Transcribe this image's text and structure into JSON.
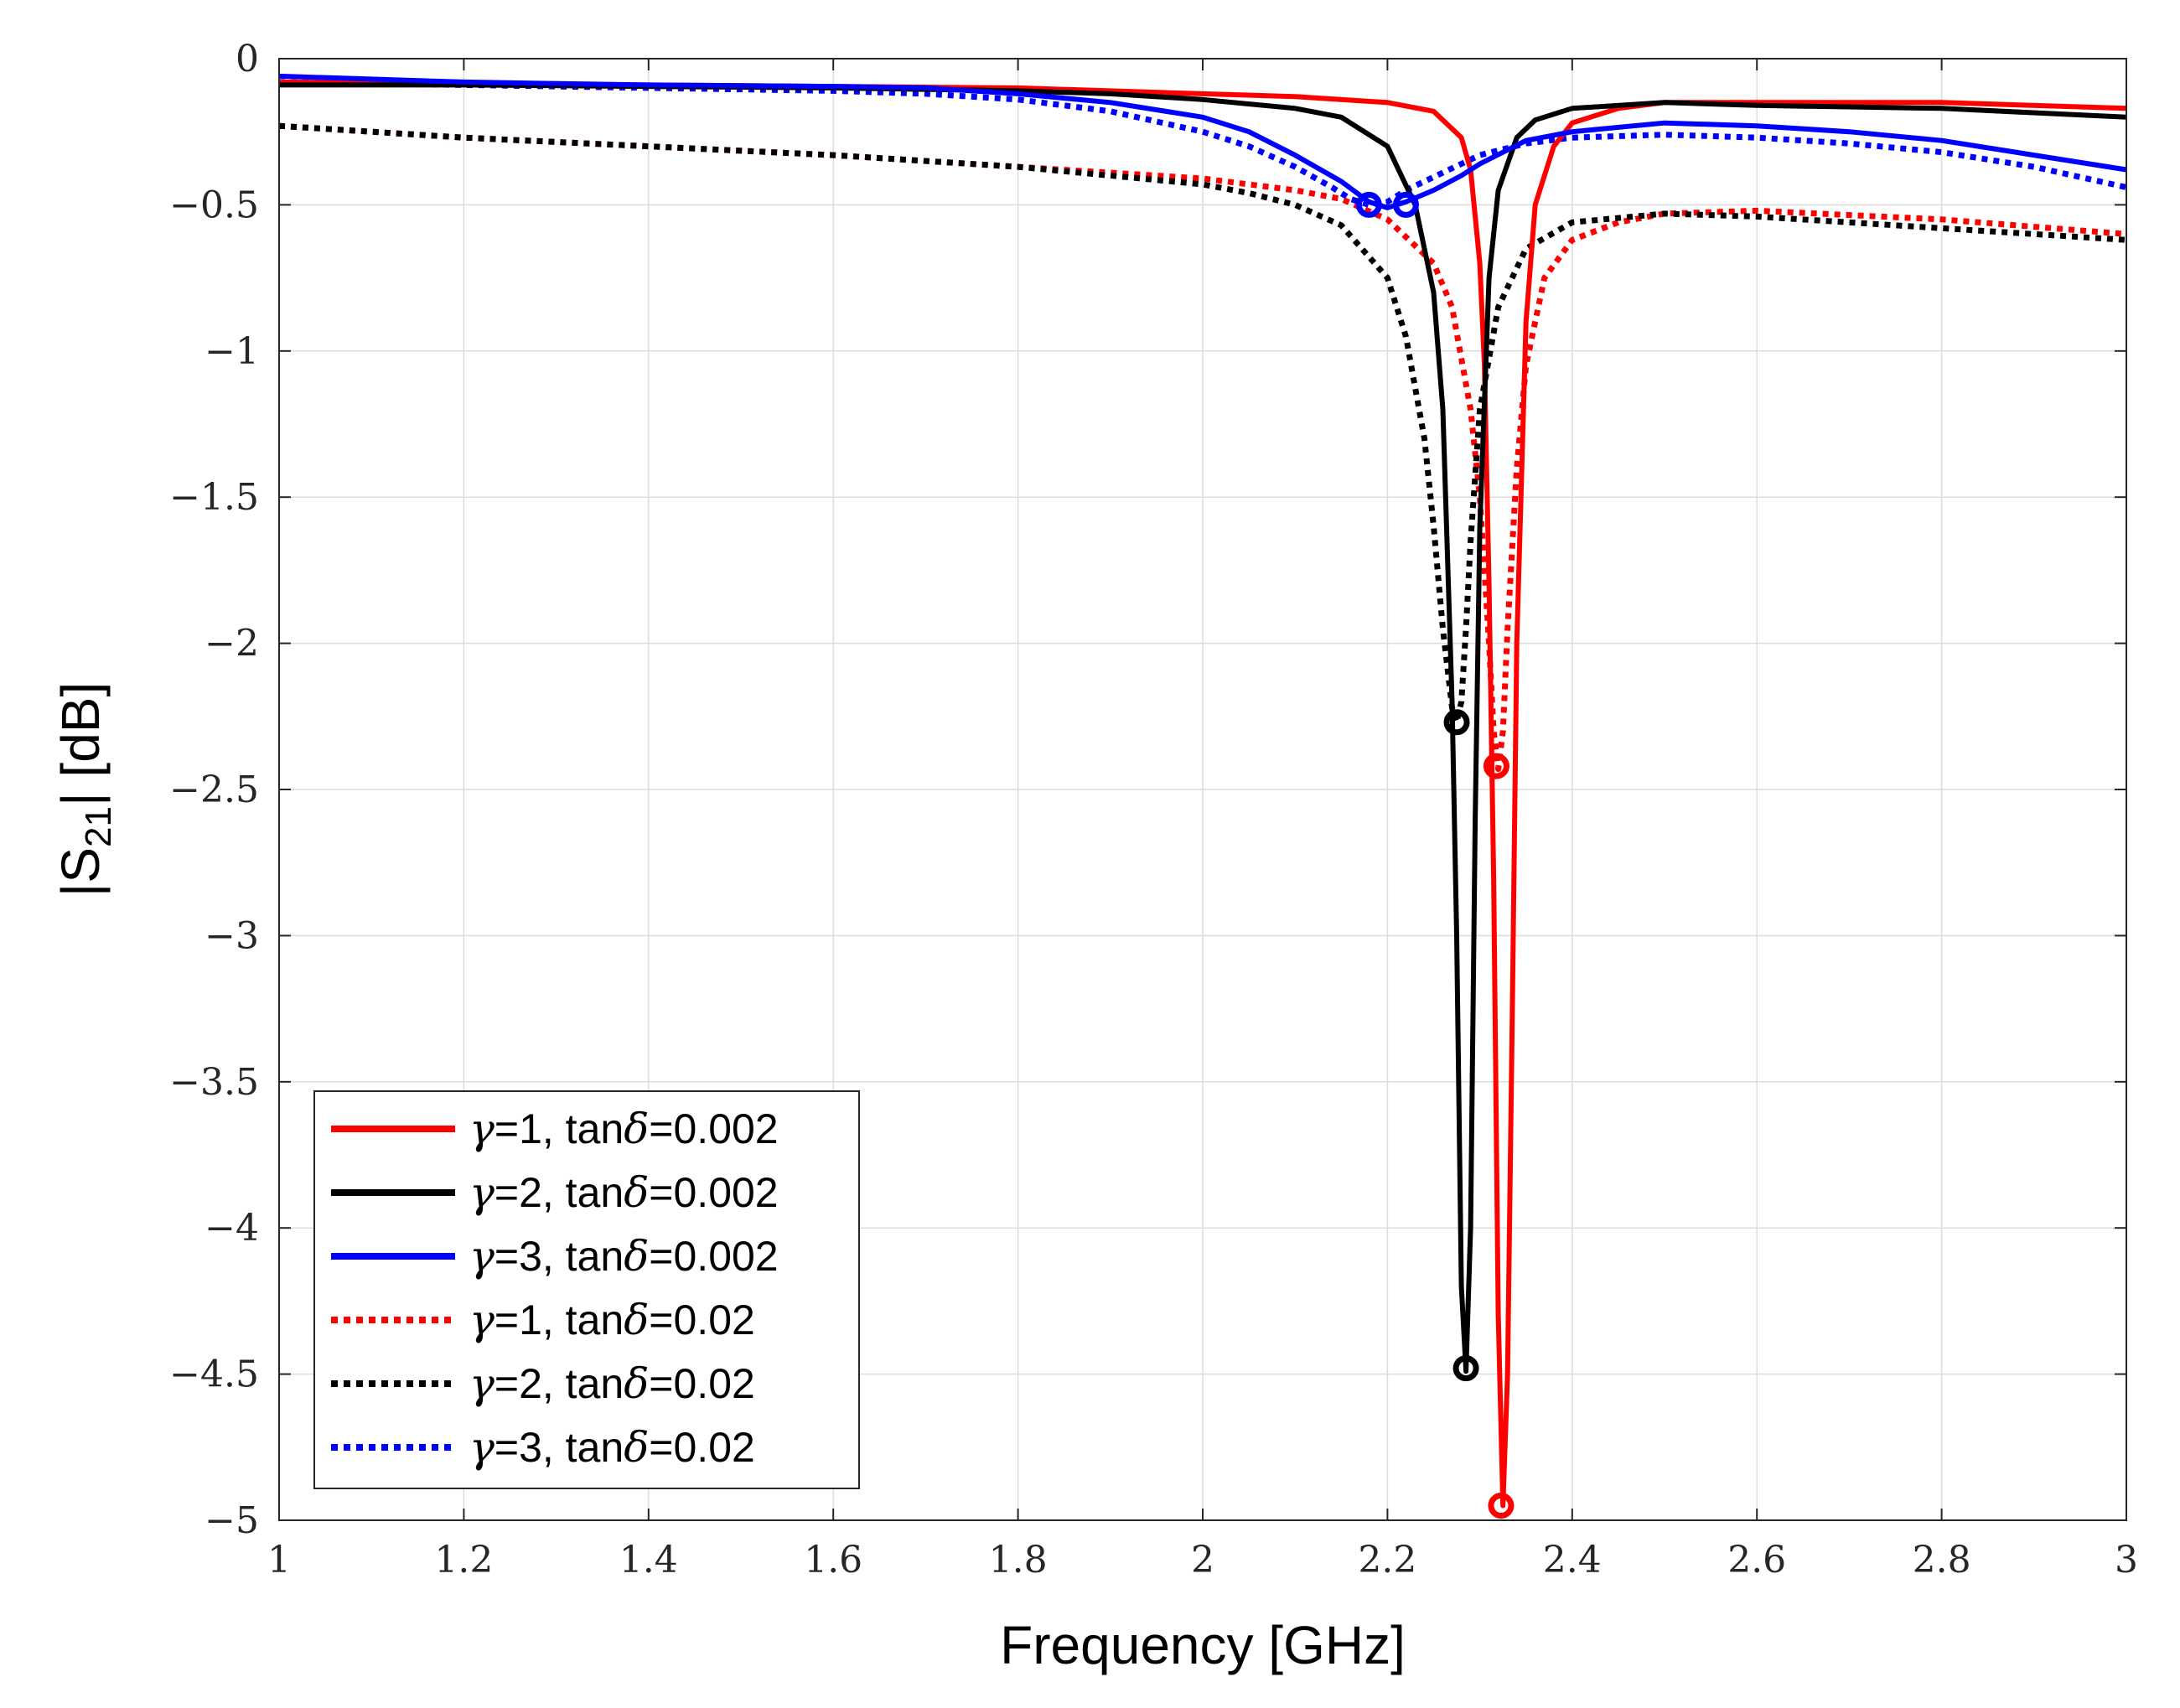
{
  "chart_data": {
    "type": "line",
    "title": "",
    "xlabel": "Frequency [GHz]",
    "ylabel": "|S",
    "ylabel_sub": "21",
    "ylabel_suffix": "| [dB]",
    "xlim": [
      1,
      3
    ],
    "ylim": [
      -5,
      0
    ],
    "grid": true,
    "legend_position": "bottom-left",
    "x_ticks": [
      1,
      1.2,
      1.4,
      1.6,
      1.8,
      2,
      2.2,
      2.4,
      2.6,
      2.8,
      3
    ],
    "x_tick_labels": [
      "1",
      "1.2",
      "1.4",
      "1.6",
      "1.8",
      "2",
      "2.2",
      "2.4",
      "2.6",
      "2.8",
      "3"
    ],
    "y_ticks": [
      0,
      -0.5,
      -1,
      -1.5,
      -2,
      -2.5,
      -3,
      -3.5,
      -4,
      -4.5,
      -5
    ],
    "y_tick_labels": [
      "0",
      "−0.5",
      "−1",
      "−1.5",
      "−2",
      "−2.5",
      "−3",
      "−3.5",
      "−4",
      "−4.5",
      "−5"
    ],
    "series": [
      {
        "name": "γ=1, tanδ=0.002",
        "legend_greek": "γ",
        "legend_a": "=1, tan",
        "legend_delta": "δ",
        "legend_b": "=0.002",
        "color": "#ff0000",
        "style": "solid",
        "x": [
          1,
          1.2,
          1.4,
          1.6,
          1.8,
          2,
          2.1,
          2.2,
          2.25,
          2.28,
          2.29,
          2.3,
          2.305,
          2.31,
          2.315,
          2.32,
          2.325,
          2.33,
          2.335,
          2.34,
          2.35,
          2.36,
          2.38,
          2.4,
          2.45,
          2.5,
          2.6,
          2.8,
          3
        ],
        "y": [
          -0.08,
          -0.085,
          -0.09,
          -0.095,
          -0.1,
          -0.12,
          -0.13,
          -0.15,
          -0.18,
          -0.27,
          -0.38,
          -0.7,
          -1.05,
          -1.8,
          -2.8,
          -4.3,
          -4.95,
          -4.5,
          -3.3,
          -2.0,
          -0.9,
          -0.5,
          -0.3,
          -0.22,
          -0.17,
          -0.15,
          -0.15,
          -0.15,
          -0.17
        ],
        "markers": [
          {
            "x": 2.318,
            "y": -2.42
          },
          {
            "x": 2.323,
            "y": -4.95
          }
        ]
      },
      {
        "name": "γ=2, tanδ=0.002",
        "legend_greek": "γ",
        "legend_a": "=2, tan",
        "legend_delta": "δ",
        "legend_b": "=0.002",
        "color": "#000000",
        "style": "solid",
        "x": [
          1,
          1.2,
          1.4,
          1.6,
          1.8,
          1.9,
          2,
          2.1,
          2.15,
          2.2,
          2.23,
          2.25,
          2.26,
          2.27,
          2.275,
          2.28,
          2.285,
          2.29,
          2.295,
          2.3,
          2.31,
          2.32,
          2.34,
          2.36,
          2.4,
          2.5,
          2.6,
          2.8,
          3
        ],
        "y": [
          -0.09,
          -0.09,
          -0.095,
          -0.1,
          -0.11,
          -0.12,
          -0.14,
          -0.17,
          -0.2,
          -0.3,
          -0.5,
          -0.8,
          -1.2,
          -2.2,
          -3.0,
          -4.2,
          -4.49,
          -4.0,
          -2.6,
          -1.6,
          -0.75,
          -0.45,
          -0.27,
          -0.21,
          -0.17,
          -0.15,
          -0.16,
          -0.17,
          -0.2
        ],
        "markers": [
          {
            "x": 2.275,
            "y": -2.27
          },
          {
            "x": 2.285,
            "y": -4.48
          }
        ]
      },
      {
        "name": "γ=3, tanδ=0.002",
        "legend_greek": "γ",
        "legend_a": "=3, tan",
        "legend_delta": "δ",
        "legend_b": "=0.002",
        "color": "#0000ff",
        "style": "solid",
        "x": [
          1,
          1.2,
          1.4,
          1.6,
          1.7,
          1.8,
          1.9,
          2,
          2.05,
          2.1,
          2.15,
          2.18,
          2.2,
          2.22,
          2.25,
          2.28,
          2.3,
          2.35,
          2.4,
          2.5,
          2.6,
          2.7,
          2.8,
          2.9,
          3
        ],
        "y": [
          -0.06,
          -0.08,
          -0.09,
          -0.095,
          -0.1,
          -0.12,
          -0.15,
          -0.2,
          -0.25,
          -0.33,
          -0.42,
          -0.49,
          -0.51,
          -0.49,
          -0.45,
          -0.4,
          -0.36,
          -0.28,
          -0.25,
          -0.22,
          -0.23,
          -0.25,
          -0.28,
          -0.33,
          -0.38
        ],
        "markers": [
          {
            "x": 2.18,
            "y": -0.5
          },
          {
            "x": 2.22,
            "y": -0.5
          }
        ]
      },
      {
        "name": "γ=1, tanδ=0.02",
        "legend_greek": "γ",
        "legend_a": "=1, tan",
        "legend_delta": "δ",
        "legend_b": "=0.02",
        "color": "#ff0000",
        "style": "dotted",
        "x": [
          1,
          1.2,
          1.4,
          1.6,
          1.8,
          2,
          2.1,
          2.15,
          2.2,
          2.25,
          2.27,
          2.29,
          2.3,
          2.31,
          2.315,
          2.32,
          2.325,
          2.33,
          2.34,
          2.35,
          2.37,
          2.4,
          2.45,
          2.5,
          2.6,
          2.8,
          3
        ],
        "y": [
          -0.23,
          -0.27,
          -0.3,
          -0.33,
          -0.37,
          -0.41,
          -0.45,
          -0.48,
          -0.55,
          -0.7,
          -0.85,
          -1.2,
          -1.5,
          -2.0,
          -2.3,
          -2.43,
          -2.3,
          -1.95,
          -1.4,
          -1.05,
          -0.75,
          -0.62,
          -0.56,
          -0.53,
          -0.52,
          -0.55,
          -0.6
        ],
        "markers": []
      },
      {
        "name": "γ=2, tanδ=0.02",
        "legend_greek": "γ",
        "legend_a": "=2, tan",
        "legend_delta": "δ",
        "legend_b": "=0.02",
        "color": "#000000",
        "style": "dotted",
        "x": [
          1,
          1.2,
          1.4,
          1.6,
          1.8,
          1.9,
          2,
          2.05,
          2.1,
          2.15,
          2.2,
          2.22,
          2.24,
          2.25,
          2.26,
          2.27,
          2.275,
          2.28,
          2.285,
          2.29,
          2.3,
          2.32,
          2.35,
          2.4,
          2.5,
          2.6,
          2.8,
          3
        ],
        "y": [
          -0.23,
          -0.27,
          -0.3,
          -0.33,
          -0.37,
          -0.4,
          -0.43,
          -0.46,
          -0.5,
          -0.57,
          -0.75,
          -0.95,
          -1.3,
          -1.6,
          -1.95,
          -2.22,
          -2.27,
          -2.2,
          -1.95,
          -1.65,
          -1.2,
          -0.85,
          -0.65,
          -0.56,
          -0.53,
          -0.54,
          -0.58,
          -0.62
        ],
        "markers": []
      },
      {
        "name": "γ=3, tanδ=0.02",
        "legend_greek": "γ",
        "legend_a": "=3, tan",
        "legend_delta": "δ",
        "legend_b": "=0.02",
        "color": "#0000ff",
        "style": "dotted",
        "x": [
          1,
          1.2,
          1.4,
          1.6,
          1.7,
          1.8,
          1.9,
          2,
          2.05,
          2.1,
          2.14,
          2.16,
          2.18,
          2.2,
          2.22,
          2.26,
          2.3,
          2.35,
          2.4,
          2.5,
          2.6,
          2.7,
          2.8,
          2.9,
          3
        ],
        "y": [
          -0.08,
          -0.09,
          -0.1,
          -0.11,
          -0.12,
          -0.14,
          -0.18,
          -0.25,
          -0.3,
          -0.37,
          -0.44,
          -0.48,
          -0.5,
          -0.49,
          -0.45,
          -0.39,
          -0.33,
          -0.29,
          -0.27,
          -0.26,
          -0.27,
          -0.29,
          -0.32,
          -0.37,
          -0.44
        ],
        "markers": []
      }
    ]
  }
}
